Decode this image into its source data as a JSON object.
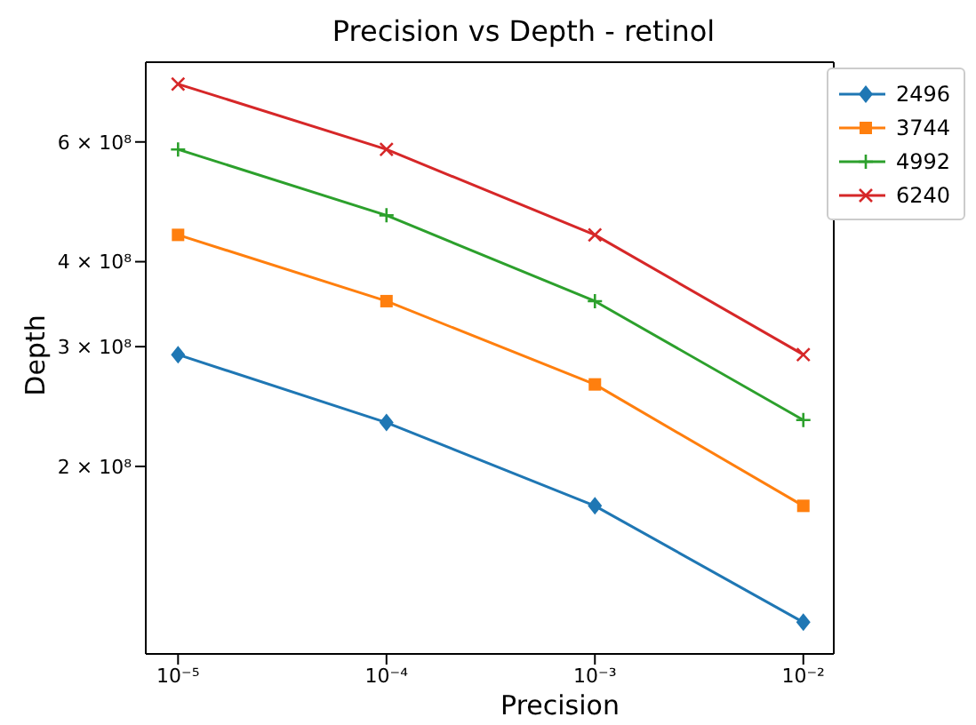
{
  "chart_data": {
    "type": "line",
    "title": "Precision vs Depth - retinol",
    "xlabel": "Precision",
    "ylabel": "Depth",
    "log": "xy",
    "x": [
      1e-05,
      0.0001,
      0.001,
      0.01
    ],
    "xlim": [
      7e-06,
      0.014
    ],
    "xticks": [
      {
        "value": 1e-05,
        "label": "10⁻⁵"
      },
      {
        "value": 0.0001,
        "label": "10⁻⁴"
      },
      {
        "value": 0.001,
        "label": "10⁻³"
      },
      {
        "value": 0.01,
        "label": "10⁻²"
      }
    ],
    "ylim": [
      106000000,
      786000000
    ],
    "yticks": [
      {
        "value": 200000000,
        "label": "2 × 10⁸"
      },
      {
        "value": 300000000,
        "label": "3 × 10⁸"
      },
      {
        "value": 400000000,
        "label": "4 × 10⁸"
      },
      {
        "value": 600000000,
        "label": "6 × 10⁸"
      }
    ],
    "grid": false,
    "legend": "top right",
    "line_style": "solid",
    "series": [
      {
        "name": "2496",
        "color": "#1f77b4",
        "marker": "diamond",
        "values": [
          292000000,
          232000000,
          175000000,
          118000000
        ]
      },
      {
        "name": "3744",
        "color": "#ff7f0e",
        "marker": "square",
        "values": [
          438000000,
          350000000,
          264000000,
          175000000
        ]
      },
      {
        "name": "4992",
        "color": "#2ca02c",
        "marker": "cross",
        "values": [
          585000000,
          468000000,
          350000000,
          234000000
        ]
      },
      {
        "name": "6240",
        "color": "#d62728",
        "marker": "x",
        "values": [
          730000000,
          585000000,
          438000000,
          292000000
        ]
      }
    ]
  }
}
